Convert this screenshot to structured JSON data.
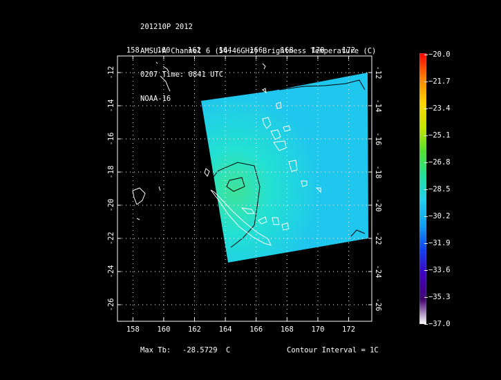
{
  "header": {
    "line1": "201210P 2012",
    "line2": "AMSU-A Channel 6 (54.46GHz) Brightness Temperature (C)",
    "line3": "0207 Time: 0841 UTC",
    "line4": "NOAA-16"
  },
  "map": {
    "lon_ticks": [
      "158",
      "160",
      "162",
      "164",
      "166",
      "168",
      "170",
      "172"
    ],
    "lat_ticks": [
      "-12",
      "-14",
      "-16",
      "-18",
      "-20",
      "-22",
      "-24",
      "-26"
    ],
    "lon_range": [
      157,
      173.5
    ],
    "lat_range": [
      -27,
      -11
    ],
    "swath_colors": {
      "warm": "#3fe39a",
      "mid": "#22e0d3",
      "cool": "#1fc6ee"
    },
    "grid": true
  },
  "footer": {
    "max_label": "Max Tb:",
    "max_value": "-28.5729",
    "max_unit": "C",
    "contour": "Contour Interval = 1C"
  },
  "colorbar": {
    "labels": [
      "-20.0",
      "-21.7",
      "-23.4",
      "-25.1",
      "-26.8",
      "-28.5",
      "-30.2",
      "-31.9",
      "-33.6",
      "-35.3",
      "-37.0"
    ],
    "stops": [
      "#ff0000",
      "#ff8000",
      "#ffd200",
      "#c8e600",
      "#50e030",
      "#20e0a0",
      "#20d0f0",
      "#10a0f0",
      "#1040f0",
      "#4000c0",
      "#400070",
      "#ffffff"
    ]
  }
}
